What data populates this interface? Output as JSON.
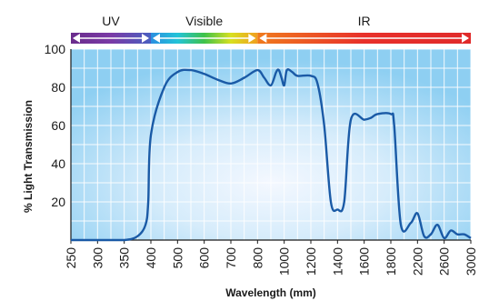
{
  "chart_data": {
    "type": "line",
    "title": "",
    "xlabel": "Wavelength (mm)",
    "ylabel": "% Light Transmission",
    "x_tick_labels": [
      "250",
      "300",
      "350",
      "400",
      "500",
      "600",
      "700",
      "800",
      "1000",
      "1200",
      "1400",
      "1600",
      "1800",
      "2200",
      "2600",
      "3000"
    ],
    "y_ticks": [
      20,
      40,
      60,
      80,
      100
    ],
    "ylim": [
      0,
      100
    ],
    "grid": true,
    "bands": [
      {
        "label": "UV",
        "from": "250",
        "to": "400",
        "colors": [
          "#6a2c8c",
          "#7a3aa6",
          "#4a5fc0"
        ]
      },
      {
        "label": "Visible",
        "from": "400",
        "to": "800",
        "colors": [
          "#2b8fe0",
          "#22c3d8",
          "#3ec24a",
          "#d8e020",
          "#f0a020"
        ]
      },
      {
        "label": "IR",
        "from": "800",
        "to": "3000",
        "colors": [
          "#f07a1e",
          "#e8302a",
          "#e02a2a"
        ]
      }
    ],
    "series": [
      {
        "values": [
          [
            "250",
            0
          ],
          [
            "300",
            0
          ],
          [
            "350",
            0
          ],
          [
            "375",
            2
          ],
          [
            "390",
            8
          ],
          [
            "395",
            20
          ],
          [
            "400",
            55
          ],
          [
            "450",
            80
          ],
          [
            "500",
            88
          ],
          [
            "550",
            89
          ],
          [
            "600",
            87
          ],
          [
            "650",
            84
          ],
          [
            "700",
            82
          ],
          [
            "750",
            85
          ],
          [
            "800",
            89
          ],
          [
            "850",
            85
          ],
          [
            "900",
            81
          ],
          [
            "940",
            88
          ],
          [
            "960",
            89
          ],
          [
            "980",
            85
          ],
          [
            "1000",
            81
          ],
          [
            "1020",
            89
          ],
          [
            "1060",
            88
          ],
          [
            "1100",
            86
          ],
          [
            "1200",
            86
          ],
          [
            "1250",
            82
          ],
          [
            "1300",
            60
          ],
          [
            "1350",
            20
          ],
          [
            "1400",
            16
          ],
          [
            "1450",
            20
          ],
          [
            "1500",
            63
          ],
          [
            "1600",
            63
          ],
          [
            "1650",
            64
          ],
          [
            "1700",
            66
          ],
          [
            "1800",
            66
          ],
          [
            "1850",
            60
          ],
          [
            "1950",
            8
          ],
          [
            "2100",
            9
          ],
          [
            "2200",
            14
          ],
          [
            "2300",
            2
          ],
          [
            "2400",
            3
          ],
          [
            "2500",
            8
          ],
          [
            "2600",
            1
          ],
          [
            "2700",
            5
          ],
          [
            "2800",
            3
          ],
          [
            "2900",
            3
          ],
          [
            "3000",
            1
          ]
        ]
      }
    ],
    "colors": {
      "line": "#1a5aa6",
      "plot_bg_center": "#f4f8ff",
      "plot_bg_edge": "#8ecff2",
      "grid": "#ffffff"
    }
  }
}
